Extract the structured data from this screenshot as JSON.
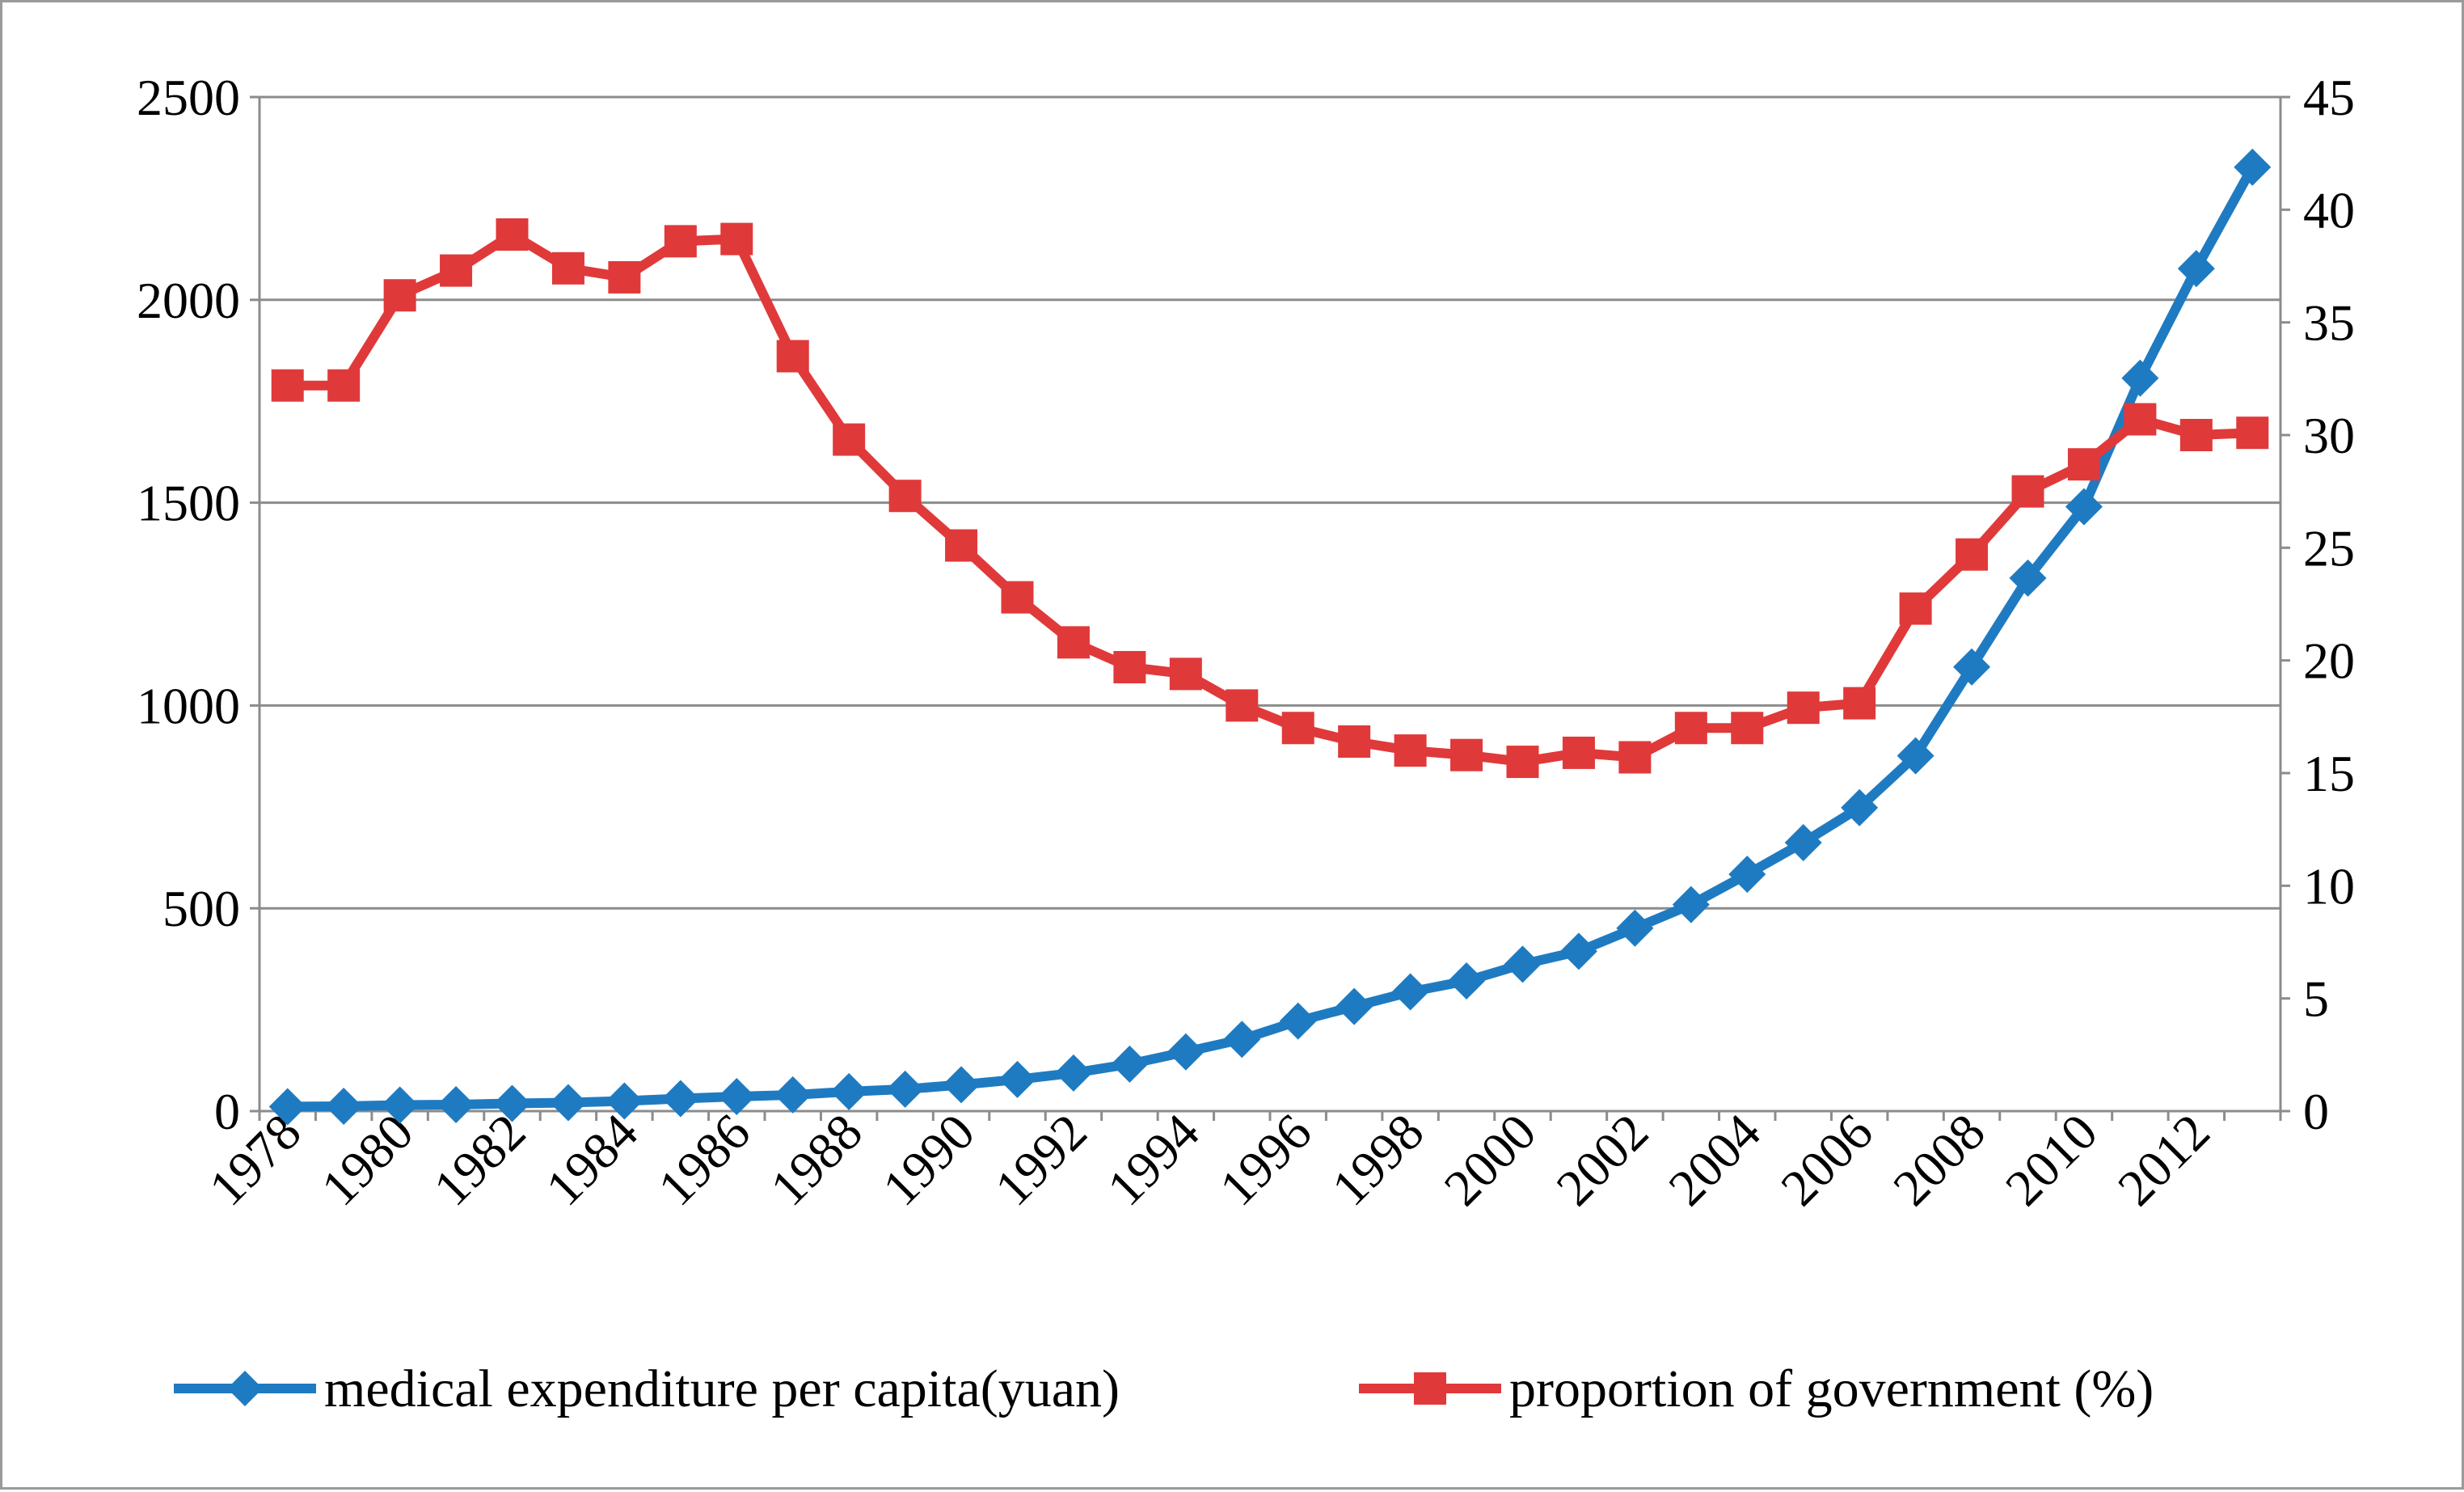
{
  "chart_data": {
    "type": "line",
    "title": "",
    "xlabel": "",
    "ylabel_left": "",
    "ylabel_right": "",
    "categories": [
      "1978",
      "1979",
      "1980",
      "1981",
      "1982",
      "1983",
      "1984",
      "1985",
      "1986",
      "1987",
      "1988",
      "1989",
      "1990",
      "1991",
      "1992",
      "1993",
      "1994",
      "1995",
      "1996",
      "1997",
      "1998",
      "1999",
      "2000",
      "2001",
      "2002",
      "2003",
      "2004",
      "2005",
      "2006",
      "2007",
      "2008",
      "2009",
      "2010",
      "2011",
      "2012",
      "2013"
    ],
    "x_tick_labels": [
      "1978",
      "1980",
      "1982",
      "1984",
      "1986",
      "1988",
      "1990",
      "1992",
      "1994",
      "1996",
      "1998",
      "2000",
      "2002",
      "2004",
      "2006",
      "2008",
      "2010",
      "2012"
    ],
    "y_left": {
      "min": 0,
      "max": 2500,
      "ticks": [
        "0",
        "500",
        "1000",
        "1500",
        "2000",
        "2500"
      ]
    },
    "y_right": {
      "min": 0,
      "max": 45,
      "ticks": [
        "0",
        "5",
        "10",
        "15",
        "20",
        "25",
        "30",
        "35",
        "40",
        "45"
      ]
    },
    "grid": "horizontal",
    "legend_position": "bottom",
    "series": [
      {
        "name": "medical expenditure per capita(yuan)",
        "axis": "left",
        "marker": "diamond",
        "color": "#1f7bc1",
        "values": [
          11,
          12,
          15,
          16,
          19,
          21,
          25,
          31,
          36,
          40,
          48,
          54,
          65,
          78,
          94,
          116,
          146,
          177,
          222,
          258,
          294,
          321,
          362,
          394,
          451,
          509,
          584,
          662,
          748,
          876,
          1095,
          1314,
          1490,
          1807,
          2077,
          2327
        ]
      },
      {
        "name": "proportion of government (%)",
        "axis": "right",
        "marker": "square",
        "color": "#e0393a",
        "values": [
          32.2,
          32.2,
          36.2,
          37.3,
          38.9,
          37.4,
          37.0,
          38.6,
          38.7,
          33.5,
          29.8,
          27.3,
          25.1,
          22.8,
          20.8,
          19.7,
          19.4,
          18.0,
          17.0,
          16.4,
          16.0,
          15.8,
          15.5,
          15.9,
          15.7,
          17.0,
          17.0,
          17.9,
          18.1,
          22.3,
          24.7,
          27.5,
          28.7,
          30.7,
          30.0,
          30.1
        ]
      }
    ]
  }
}
